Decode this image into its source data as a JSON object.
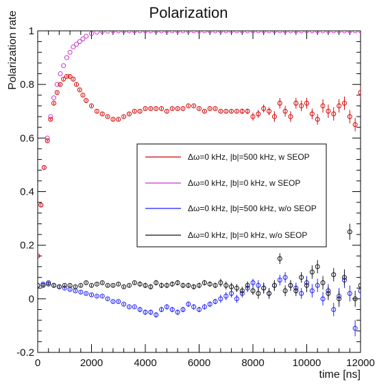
{
  "chart_data": {
    "type": "scatter",
    "title": "Polarization",
    "xlabel": "time [ns]",
    "ylabel": "Polarization rate",
    "xlim": [
      0,
      12000
    ],
    "ylim": [
      -0.2,
      1.0
    ],
    "x_ticks": [
      0,
      2000,
      4000,
      6000,
      8000,
      10000,
      12000
    ],
    "y_ticks": [
      -0.2,
      0,
      0.2,
      0.4,
      0.6,
      0.8,
      1
    ],
    "grid": false,
    "legend_position": "center-right",
    "series": [
      {
        "name": "Δω=0 kHz, |b|=500 kHz, w SEOP",
        "color": "#d40000",
        "marker": "open-circle",
        "error_bars": true,
        "x": [
          0,
          120,
          240,
          360,
          480,
          600,
          720,
          840,
          960,
          1080,
          1200,
          1320,
          1440,
          1560,
          1680,
          1800,
          2000,
          2200,
          2400,
          2600,
          2800,
          3000,
          3200,
          3400,
          3600,
          3800,
          4000,
          4200,
          4400,
          4600,
          4800,
          5000,
          5200,
          5400,
          5600,
          5800,
          6000,
          6200,
          6400,
          6600,
          6800,
          7000,
          7200,
          7400,
          7600,
          7800,
          8000,
          8200,
          8400,
          8600,
          8800,
          9000,
          9200,
          9400,
          9600,
          9800,
          10000,
          10200,
          10400,
          10600,
          10800,
          11000,
          11200,
          11400,
          11600,
          11800,
          12000
        ],
        "y": [
          0.16,
          0.35,
          0.49,
          0.59,
          0.67,
          0.73,
          0.77,
          0.8,
          0.82,
          0.83,
          0.83,
          0.82,
          0.8,
          0.78,
          0.76,
          0.74,
          0.72,
          0.7,
          0.69,
          0.68,
          0.67,
          0.67,
          0.68,
          0.69,
          0.7,
          0.7,
          0.71,
          0.71,
          0.71,
          0.71,
          0.7,
          0.71,
          0.71,
          0.71,
          0.72,
          0.72,
          0.71,
          0.7,
          0.71,
          0.71,
          0.7,
          0.7,
          0.7,
          0.7,
          0.7,
          0.7,
          0.68,
          0.69,
          0.71,
          0.7,
          0.68,
          0.73,
          0.7,
          0.68,
          0.73,
          0.72,
          0.73,
          0.69,
          0.67,
          0.72,
          0.7,
          0.69,
          0.72,
          0.73,
          0.68,
          0.65,
          0.77
        ],
        "err": [
          0.005,
          0.005,
          0.005,
          0.005,
          0.005,
          0.005,
          0.005,
          0.005,
          0.005,
          0.005,
          0.005,
          0.005,
          0.005,
          0.005,
          0.005,
          0.005,
          0.005,
          0.005,
          0.005,
          0.005,
          0.005,
          0.005,
          0.005,
          0.005,
          0.005,
          0.005,
          0.005,
          0.005,
          0.005,
          0.005,
          0.005,
          0.005,
          0.005,
          0.005,
          0.005,
          0.005,
          0.005,
          0.005,
          0.005,
          0.005,
          0.005,
          0.005,
          0.005,
          0.005,
          0.01,
          0.01,
          0.015,
          0.015,
          0.015,
          0.015,
          0.02,
          0.02,
          0.02,
          0.02,
          0.02,
          0.02,
          0.02,
          0.02,
          0.02,
          0.025,
          0.025,
          0.025,
          0.025,
          0.025,
          0.025,
          0.025,
          0.025
        ]
      },
      {
        "name": "Δω=0 kHz, |b|=0 kHz, w SEOP",
        "color": "#cc33cc",
        "marker": "open-circle",
        "error_bars": false,
        "x": [
          0,
          120,
          240,
          360,
          480,
          600,
          720,
          840,
          960,
          1080,
          1200,
          1320,
          1440,
          1560,
          1680,
          1800,
          2000,
          2200,
          2400,
          2600,
          2800,
          3000,
          3200,
          3400,
          3600,
          3800,
          4000,
          4200,
          4400,
          4600,
          4800,
          5000,
          5200,
          5400,
          5600,
          5800,
          6000,
          6200,
          6400,
          6600,
          6800,
          7000,
          7200,
          7400,
          7600,
          7800,
          8000,
          8200,
          8400,
          8600,
          8800,
          9000,
          9200,
          9400,
          9600,
          9800,
          10000,
          10200,
          10400,
          10600,
          10800,
          11000,
          11200,
          11400,
          11600,
          11800,
          12000
        ],
        "y": [
          0.16,
          0.35,
          0.49,
          0.6,
          0.68,
          0.75,
          0.8,
          0.84,
          0.87,
          0.9,
          0.92,
          0.94,
          0.95,
          0.96,
          0.97,
          0.98,
          0.99,
          0.995,
          0.998,
          0.999,
          1,
          1,
          1,
          1,
          1,
          1,
          1,
          1,
          1,
          1,
          1,
          1,
          1,
          1,
          1,
          1,
          1,
          1,
          1,
          1,
          1,
          1,
          1,
          1,
          1,
          1,
          1,
          1,
          1,
          1,
          1,
          1,
          1,
          1,
          1,
          1,
          1,
          1,
          1,
          1,
          1,
          1,
          1,
          1,
          1,
          1,
          1
        ]
      },
      {
        "name": "Δω=0 kHz, |b|=500 kHz, w/o SEOP",
        "color": "#1a1aff",
        "marker": "open-circle",
        "error_bars": true,
        "x": [
          0,
          200,
          400,
          600,
          800,
          1000,
          1200,
          1400,
          1600,
          1800,
          2000,
          2200,
          2400,
          2600,
          2800,
          3000,
          3200,
          3400,
          3600,
          3800,
          4000,
          4200,
          4400,
          4600,
          4800,
          5000,
          5200,
          5400,
          5600,
          5800,
          6000,
          6200,
          6400,
          6600,
          6800,
          7000,
          7200,
          7400,
          7600,
          7800,
          8000,
          8200,
          8400,
          8600,
          8800,
          9000,
          9200,
          9400,
          9600,
          9800,
          10000,
          10200,
          10400,
          10600,
          10800,
          11000,
          11200,
          11400,
          11600,
          11800,
          12000
        ],
        "y": [
          0.05,
          0.055,
          0.06,
          0.05,
          0.045,
          0.04,
          0.035,
          0.03,
          0.025,
          0.02,
          0.015,
          0.01,
          0.01,
          0.0,
          -0.01,
          -0.01,
          -0.02,
          -0.03,
          -0.03,
          -0.04,
          -0.05,
          -0.05,
          -0.06,
          -0.04,
          -0.03,
          -0.04,
          -0.05,
          -0.04,
          -0.02,
          -0.03,
          -0.04,
          -0.03,
          -0.02,
          -0.01,
          0.0,
          0.01,
          0.02,
          0.0,
          0.02,
          0.04,
          0.06,
          0.05,
          0.04,
          0.02,
          0.05,
          0.07,
          0.08,
          0.05,
          0.04,
          0.02,
          0.06,
          0.03,
          0.05,
          0.0,
          0.03,
          -0.04,
          0.01,
          0.07,
          0.02,
          -0.11,
          0.03
        ],
        "err": [
          0.005,
          0.005,
          0.005,
          0.005,
          0.005,
          0.005,
          0.005,
          0.005,
          0.005,
          0.005,
          0.005,
          0.005,
          0.005,
          0.005,
          0.005,
          0.005,
          0.005,
          0.005,
          0.005,
          0.01,
          0.01,
          0.01,
          0.01,
          0.01,
          0.01,
          0.01,
          0.01,
          0.01,
          0.01,
          0.01,
          0.01,
          0.01,
          0.01,
          0.01,
          0.015,
          0.015,
          0.015,
          0.015,
          0.015,
          0.015,
          0.015,
          0.02,
          0.02,
          0.02,
          0.02,
          0.02,
          0.02,
          0.02,
          0.02,
          0.02,
          0.025,
          0.025,
          0.025,
          0.025,
          0.025,
          0.025,
          0.03,
          0.03,
          0.03,
          0.03,
          0.03
        ]
      },
      {
        "name": "Δω=0 kHz, |b|=0 kHz, w/o SEOP",
        "color": "#111111",
        "marker": "open-circle",
        "error_bars": true,
        "x": [
          0,
          200,
          400,
          600,
          800,
          1000,
          1200,
          1400,
          1600,
          1800,
          2000,
          2200,
          2400,
          2600,
          2800,
          3000,
          3200,
          3400,
          3600,
          3800,
          4000,
          4200,
          4400,
          4600,
          4800,
          5000,
          5200,
          5400,
          5600,
          5800,
          6000,
          6200,
          6400,
          6600,
          6800,
          7000,
          7200,
          7400,
          7600,
          7800,
          8000,
          8200,
          8400,
          8600,
          8800,
          9000,
          9200,
          9400,
          9600,
          9800,
          10000,
          10200,
          10400,
          10600,
          10800,
          11000,
          11200,
          11400,
          11600,
          11800,
          12000
        ],
        "y": [
          0.05,
          0.05,
          0.055,
          0.05,
          0.045,
          0.05,
          0.05,
          0.045,
          0.05,
          0.06,
          0.05,
          0.055,
          0.06,
          0.05,
          0.05,
          0.055,
          0.045,
          0.05,
          0.06,
          0.055,
          0.05,
          0.045,
          0.06,
          0.05,
          0.05,
          0.055,
          0.06,
          0.05,
          0.05,
          0.045,
          0.05,
          0.06,
          0.055,
          0.05,
          0.06,
          0.05,
          0.045,
          0.04,
          0.03,
          0.05,
          0.03,
          0.02,
          0.04,
          0.02,
          0.05,
          0.15,
          0.03,
          0.05,
          0.03,
          0.08,
          0.05,
          0.1,
          0.12,
          0.06,
          0.02,
          0.09,
          0.0,
          0.08,
          0.25,
          0.0,
          0.05
        ],
        "err": [
          0.005,
          0.005,
          0.005,
          0.005,
          0.005,
          0.005,
          0.005,
          0.005,
          0.005,
          0.005,
          0.005,
          0.005,
          0.005,
          0.005,
          0.005,
          0.005,
          0.005,
          0.005,
          0.005,
          0.01,
          0.01,
          0.01,
          0.01,
          0.01,
          0.01,
          0.01,
          0.01,
          0.01,
          0.01,
          0.01,
          0.01,
          0.01,
          0.01,
          0.01,
          0.015,
          0.015,
          0.015,
          0.015,
          0.015,
          0.015,
          0.015,
          0.02,
          0.02,
          0.02,
          0.02,
          0.02,
          0.02,
          0.02,
          0.02,
          0.02,
          0.025,
          0.025,
          0.025,
          0.025,
          0.025,
          0.025,
          0.03,
          0.03,
          0.03,
          0.03,
          0.03
        ]
      }
    ]
  }
}
